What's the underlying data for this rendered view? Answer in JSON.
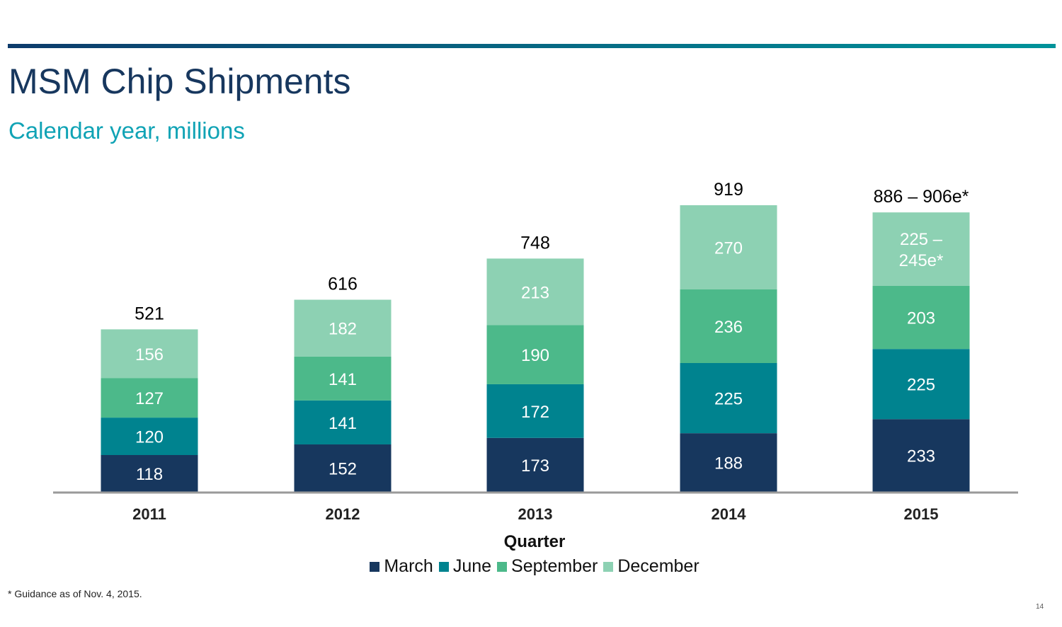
{
  "header": {
    "title": "MSM Chip Shipments",
    "subtitle": "Calendar year, millions"
  },
  "footnote": "* Guidance as of Nov. 4, 2015.",
  "page_number": "14",
  "chart_data": {
    "type": "bar",
    "stacked": true,
    "title": "MSM Chip Shipments",
    "subtitle": "Calendar year, millions",
    "xlabel": "Quarter",
    "ylabel": "",
    "categories": [
      "2011",
      "2012",
      "2013",
      "2014",
      "2015"
    ],
    "series": [
      {
        "name": "March",
        "color": "#17375e",
        "values": [
          118,
          152,
          173,
          188,
          233
        ],
        "labels": [
          "118",
          "152",
          "173",
          "188",
          "233"
        ]
      },
      {
        "name": "June",
        "color": "#00838f",
        "values": [
          120,
          141,
          172,
          225,
          225
        ],
        "labels": [
          "120",
          "141",
          "172",
          "225",
          "225"
        ]
      },
      {
        "name": "September",
        "color": "#4cb98a",
        "values": [
          127,
          141,
          190,
          236,
          203
        ],
        "labels": [
          "127",
          "141",
          "190",
          "236",
          "203"
        ]
      },
      {
        "name": "December",
        "color": "#8dd1b3",
        "values": [
          156,
          182,
          213,
          270,
          235
        ],
        "labels": [
          "156",
          "182",
          "213",
          "270",
          "225 –\n245e*"
        ]
      }
    ],
    "totals": [
      "521",
      "616",
      "748",
      "919",
      "886 – 906e*"
    ],
    "ylim": [
      0,
      940
    ],
    "grid": false,
    "legend_position": "bottom"
  }
}
